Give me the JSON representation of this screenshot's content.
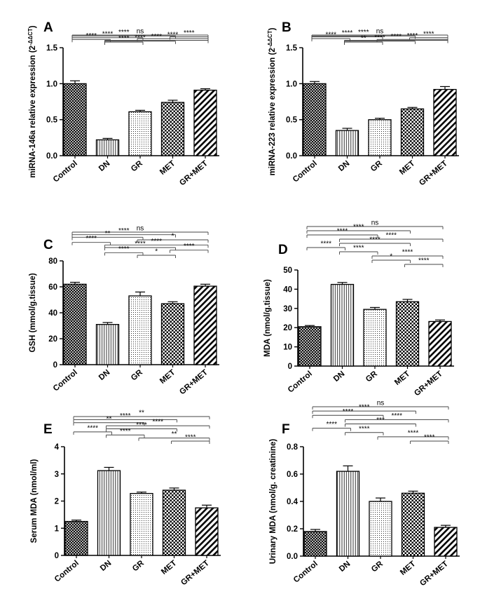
{
  "figure": {
    "description_note": "Six-panel bar chart figure",
    "colors": {
      "ink": "#000000",
      "background": "#ffffff"
    }
  },
  "chart_data": [
    {
      "panel": "A",
      "type": "bar",
      "categories": [
        "Control",
        "DN",
        "GR",
        "MET",
        "GR+MET"
      ],
      "patterns": [
        "crosshatch",
        "vlines",
        "dots",
        "checker",
        "diag"
      ],
      "values": [
        1.0,
        0.22,
        0.61,
        0.74,
        0.91
      ],
      "errors": [
        0.04,
        0.02,
        0.02,
        0.03,
        0.02
      ],
      "ylabel": "miRNA-146a relative expression (2",
      "ylabel_sup": "-ΔΔCT",
      "ylabel_close": ")",
      "ylim": [
        0,
        1.5
      ],
      "yticks": [
        0.0,
        0.5,
        1.0,
        1.5
      ],
      "tick_decimals": 1,
      "comparisons": [
        {
          "from": 0,
          "to": 4,
          "label": "ns"
        },
        {
          "from": 0,
          "to": 3,
          "label": "****"
        },
        {
          "from": 3,
          "to": 4,
          "label": "****"
        },
        {
          "from": 0,
          "to": 2,
          "label": "****"
        },
        {
          "from": 2,
          "to": 4,
          "label": "****"
        },
        {
          "from": 0,
          "to": 1,
          "label": "****"
        },
        {
          "from": 1,
          "to": 4,
          "label": "****"
        },
        {
          "from": 1,
          "to": 3,
          "label": "****"
        },
        {
          "from": 1,
          "to": 2,
          "label": "****"
        }
      ]
    },
    {
      "panel": "B",
      "type": "bar",
      "categories": [
        "Control",
        "DN",
        "GR",
        "MET",
        "GR+MET"
      ],
      "patterns": [
        "crosshatch",
        "vlines",
        "dots",
        "checker",
        "diag"
      ],
      "values": [
        1.0,
        0.35,
        0.5,
        0.65,
        0.92
      ],
      "errors": [
        0.03,
        0.03,
        0.02,
        0.02,
        0.04
      ],
      "ylabel": "miRNA-223 relative expression (2",
      "ylabel_sup": "-ΔΔCT",
      "ylabel_close": ")",
      "ylim": [
        0,
        1.5
      ],
      "yticks": [
        0.0,
        0.5,
        1.0,
        1.5
      ],
      "tick_decimals": 1,
      "comparisons": [
        {
          "from": 0,
          "to": 4,
          "label": "ns"
        },
        {
          "from": 0,
          "to": 3,
          "label": "****"
        },
        {
          "from": 0,
          "to": 2,
          "label": "****"
        },
        {
          "from": 3,
          "to": 4,
          "label": "****"
        },
        {
          "from": 0,
          "to": 1,
          "label": "****"
        },
        {
          "from": 2,
          "to": 4,
          "label": "****"
        },
        {
          "from": 1,
          "to": 4,
          "label": "****"
        },
        {
          "from": 1,
          "to": 3,
          "label": "****"
        },
        {
          "from": 1,
          "to": 2,
          "label": "**"
        }
      ]
    },
    {
      "panel": "C",
      "type": "bar",
      "categories": [
        "Control",
        "DN",
        "GR",
        "MET",
        "GR+MET"
      ],
      "patterns": [
        "crosshatch",
        "vlines",
        "dots",
        "checker",
        "diag"
      ],
      "values": [
        62,
        31,
        53,
        47,
        60.5
      ],
      "errors": [
        1.5,
        1.5,
        3,
        1.5,
        1.5
      ],
      "ylabel": "GSH (mmol/g.tissue)",
      "ylim": [
        0,
        80
      ],
      "yticks": [
        0,
        20,
        40,
        60,
        80
      ],
      "tick_decimals": 0,
      "comparisons": [
        {
          "from": 0,
          "to": 4,
          "label": "ns"
        },
        {
          "from": 0,
          "to": 3,
          "label": "****"
        },
        {
          "from": 0,
          "to": 2,
          "label": "**"
        },
        {
          "from": 2,
          "to": 4,
          "label": "*"
        },
        {
          "from": 0,
          "to": 1,
          "label": "****"
        },
        {
          "from": 1,
          "to": 4,
          "label": "****"
        },
        {
          "from": 1,
          "to": 3,
          "label": "****"
        },
        {
          "from": 3,
          "to": 4,
          "label": "****"
        },
        {
          "from": 1,
          "to": 2,
          "label": "****"
        },
        {
          "from": 2,
          "to": 3,
          "label": "*"
        }
      ]
    },
    {
      "panel": "D",
      "type": "bar",
      "categories": [
        "Control",
        "DN",
        "GR",
        "MET",
        "GR+MET"
      ],
      "patterns": [
        "crosshatch",
        "vlines",
        "dots",
        "checker",
        "diag"
      ],
      "values": [
        20.5,
        42.5,
        29.5,
        33.5,
        23.2
      ],
      "errors": [
        0.6,
        1.0,
        1.0,
        1.2,
        0.8
      ],
      "ylabel": "MDA (nmol/g.tissue)",
      "ylim": [
        0,
        50
      ],
      "yticks": [
        0,
        10,
        20,
        30,
        40,
        50
      ],
      "tick_decimals": 0,
      "comparisons": [
        {
          "from": 0,
          "to": 4,
          "label": "ns"
        },
        {
          "from": 0,
          "to": 3,
          "label": "****"
        },
        {
          "from": 0,
          "to": 2,
          "label": "****"
        },
        {
          "from": 1,
          "to": 4,
          "label": "****"
        },
        {
          "from": 1,
          "to": 3,
          "label": "****"
        },
        {
          "from": 0,
          "to": 1,
          "label": "****"
        },
        {
          "from": 1,
          "to": 2,
          "label": "****"
        },
        {
          "from": 2,
          "to": 4,
          "label": "****"
        },
        {
          "from": 2,
          "to": 3,
          "label": "*"
        },
        {
          "from": 3,
          "to": 4,
          "label": "****"
        }
      ]
    },
    {
      "panel": "E",
      "type": "bar",
      "categories": [
        "Control",
        "DN",
        "GR",
        "MET",
        "GR+MET"
      ],
      "patterns": [
        "crosshatch",
        "vlines",
        "dots",
        "checker",
        "diag"
      ],
      "values": [
        1.25,
        3.12,
        2.28,
        2.4,
        1.75
      ],
      "errors": [
        0.05,
        0.12,
        0.05,
        0.08,
        0.1
      ],
      "ylabel": "Serum MDA (nmol/ml)",
      "ylim": [
        0,
        4
      ],
      "yticks": [
        0,
        1,
        2,
        3,
        4
      ],
      "tick_decimals": 0,
      "comparisons": [
        {
          "from": 0,
          "to": 4,
          "label": "**"
        },
        {
          "from": 0,
          "to": 3,
          "label": "****"
        },
        {
          "from": 0,
          "to": 2,
          "label": "**"
        },
        {
          "from": 1,
          "to": 4,
          "label": "****"
        },
        {
          "from": 1,
          "to": 3,
          "label": "****"
        },
        {
          "from": 0,
          "to": 1,
          "label": "****"
        },
        {
          "from": 1,
          "to": 2,
          "label": "****"
        },
        {
          "from": 2,
          "to": 4,
          "label": "**"
        },
        {
          "from": 3,
          "to": 4,
          "label": "****"
        }
      ]
    },
    {
      "panel": "F",
      "type": "bar",
      "categories": [
        "Control",
        "DN",
        "GR",
        "MET",
        "GR+MET"
      ],
      "patterns": [
        "crosshatch",
        "vlines",
        "dots",
        "checker",
        "diag"
      ],
      "values": [
        0.18,
        0.62,
        0.4,
        0.46,
        0.21
      ],
      "errors": [
        0.015,
        0.04,
        0.025,
        0.015,
        0.015
      ],
      "ylabel": "Urinary MDA (nmol/g. creatinine)",
      "ylim": [
        0,
        0.8
      ],
      "yticks": [
        0.0,
        0.2,
        0.4,
        0.6,
        0.8
      ],
      "tick_decimals": 1,
      "comparisons": [
        {
          "from": 0,
          "to": 4,
          "label": "ns"
        },
        {
          "from": 0,
          "to": 3,
          "label": "****"
        },
        {
          "from": 0,
          "to": 2,
          "label": "****"
        },
        {
          "from": 1,
          "to": 4,
          "label": "****"
        },
        {
          "from": 1,
          "to": 3,
          "label": "***"
        },
        {
          "from": 0,
          "to": 1,
          "label": "****"
        },
        {
          "from": 1,
          "to": 2,
          "label": "****"
        },
        {
          "from": 2,
          "to": 4,
          "label": "****"
        },
        {
          "from": 3,
          "to": 4,
          "label": "****"
        }
      ]
    }
  ]
}
